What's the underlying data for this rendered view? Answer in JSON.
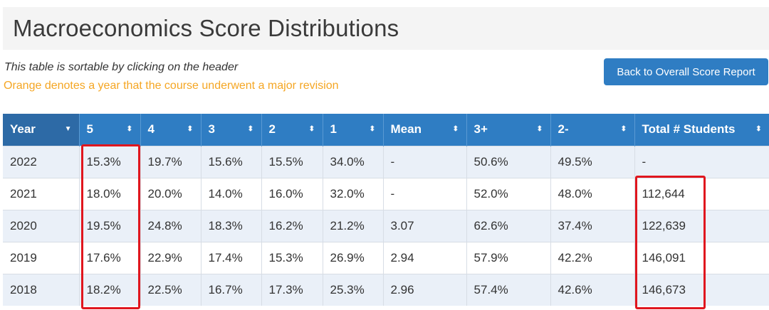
{
  "page": {
    "title": "Macroeconomics Score Distributions",
    "note_sortable": "This table is sortable by clicking on the header",
    "note_orange": "Orange denotes a year that the course underwent a major revision",
    "back_button": "Back to Overall Score Report"
  },
  "colors": {
    "header_bg": "#2f7dc3",
    "orange_note": "#f5a623",
    "row_stripe": "#eaf0f8",
    "highlight": "#e0161e"
  },
  "table": {
    "headers": [
      {
        "label": "Year",
        "icon": "sort-desc-icon"
      },
      {
        "label": "5",
        "icon": "sort-icon"
      },
      {
        "label": "4",
        "icon": "sort-icon"
      },
      {
        "label": "3",
        "icon": "sort-icon"
      },
      {
        "label": "2",
        "icon": "sort-icon"
      },
      {
        "label": "1",
        "icon": "sort-icon"
      },
      {
        "label": "Mean",
        "icon": "sort-icon"
      },
      {
        "label": "3+",
        "icon": "sort-icon"
      },
      {
        "label": "2-",
        "icon": "sort-icon"
      },
      {
        "label": "Total # Students",
        "icon": "sort-icon"
      }
    ],
    "rows": [
      [
        "2022",
        "15.3%",
        "19.7%",
        "15.6%",
        "15.5%",
        "34.0%",
        "-",
        "50.6%",
        "49.5%",
        "-"
      ],
      [
        "2021",
        "18.0%",
        "20.0%",
        "14.0%",
        "16.0%",
        "32.0%",
        "-",
        "52.0%",
        "48.0%",
        "112,644"
      ],
      [
        "2020",
        "19.5%",
        "24.8%",
        "18.3%",
        "16.2%",
        "21.2%",
        "3.07",
        "62.6%",
        "37.4%",
        "122,639"
      ],
      [
        "2019",
        "17.6%",
        "22.9%",
        "17.4%",
        "15.3%",
        "26.9%",
        "2.94",
        "57.9%",
        "42.2%",
        "146,091"
      ],
      [
        "2018",
        "18.2%",
        "22.5%",
        "16.7%",
        "17.3%",
        "25.3%",
        "2.96",
        "57.4%",
        "42.6%",
        "146,673"
      ]
    ]
  }
}
